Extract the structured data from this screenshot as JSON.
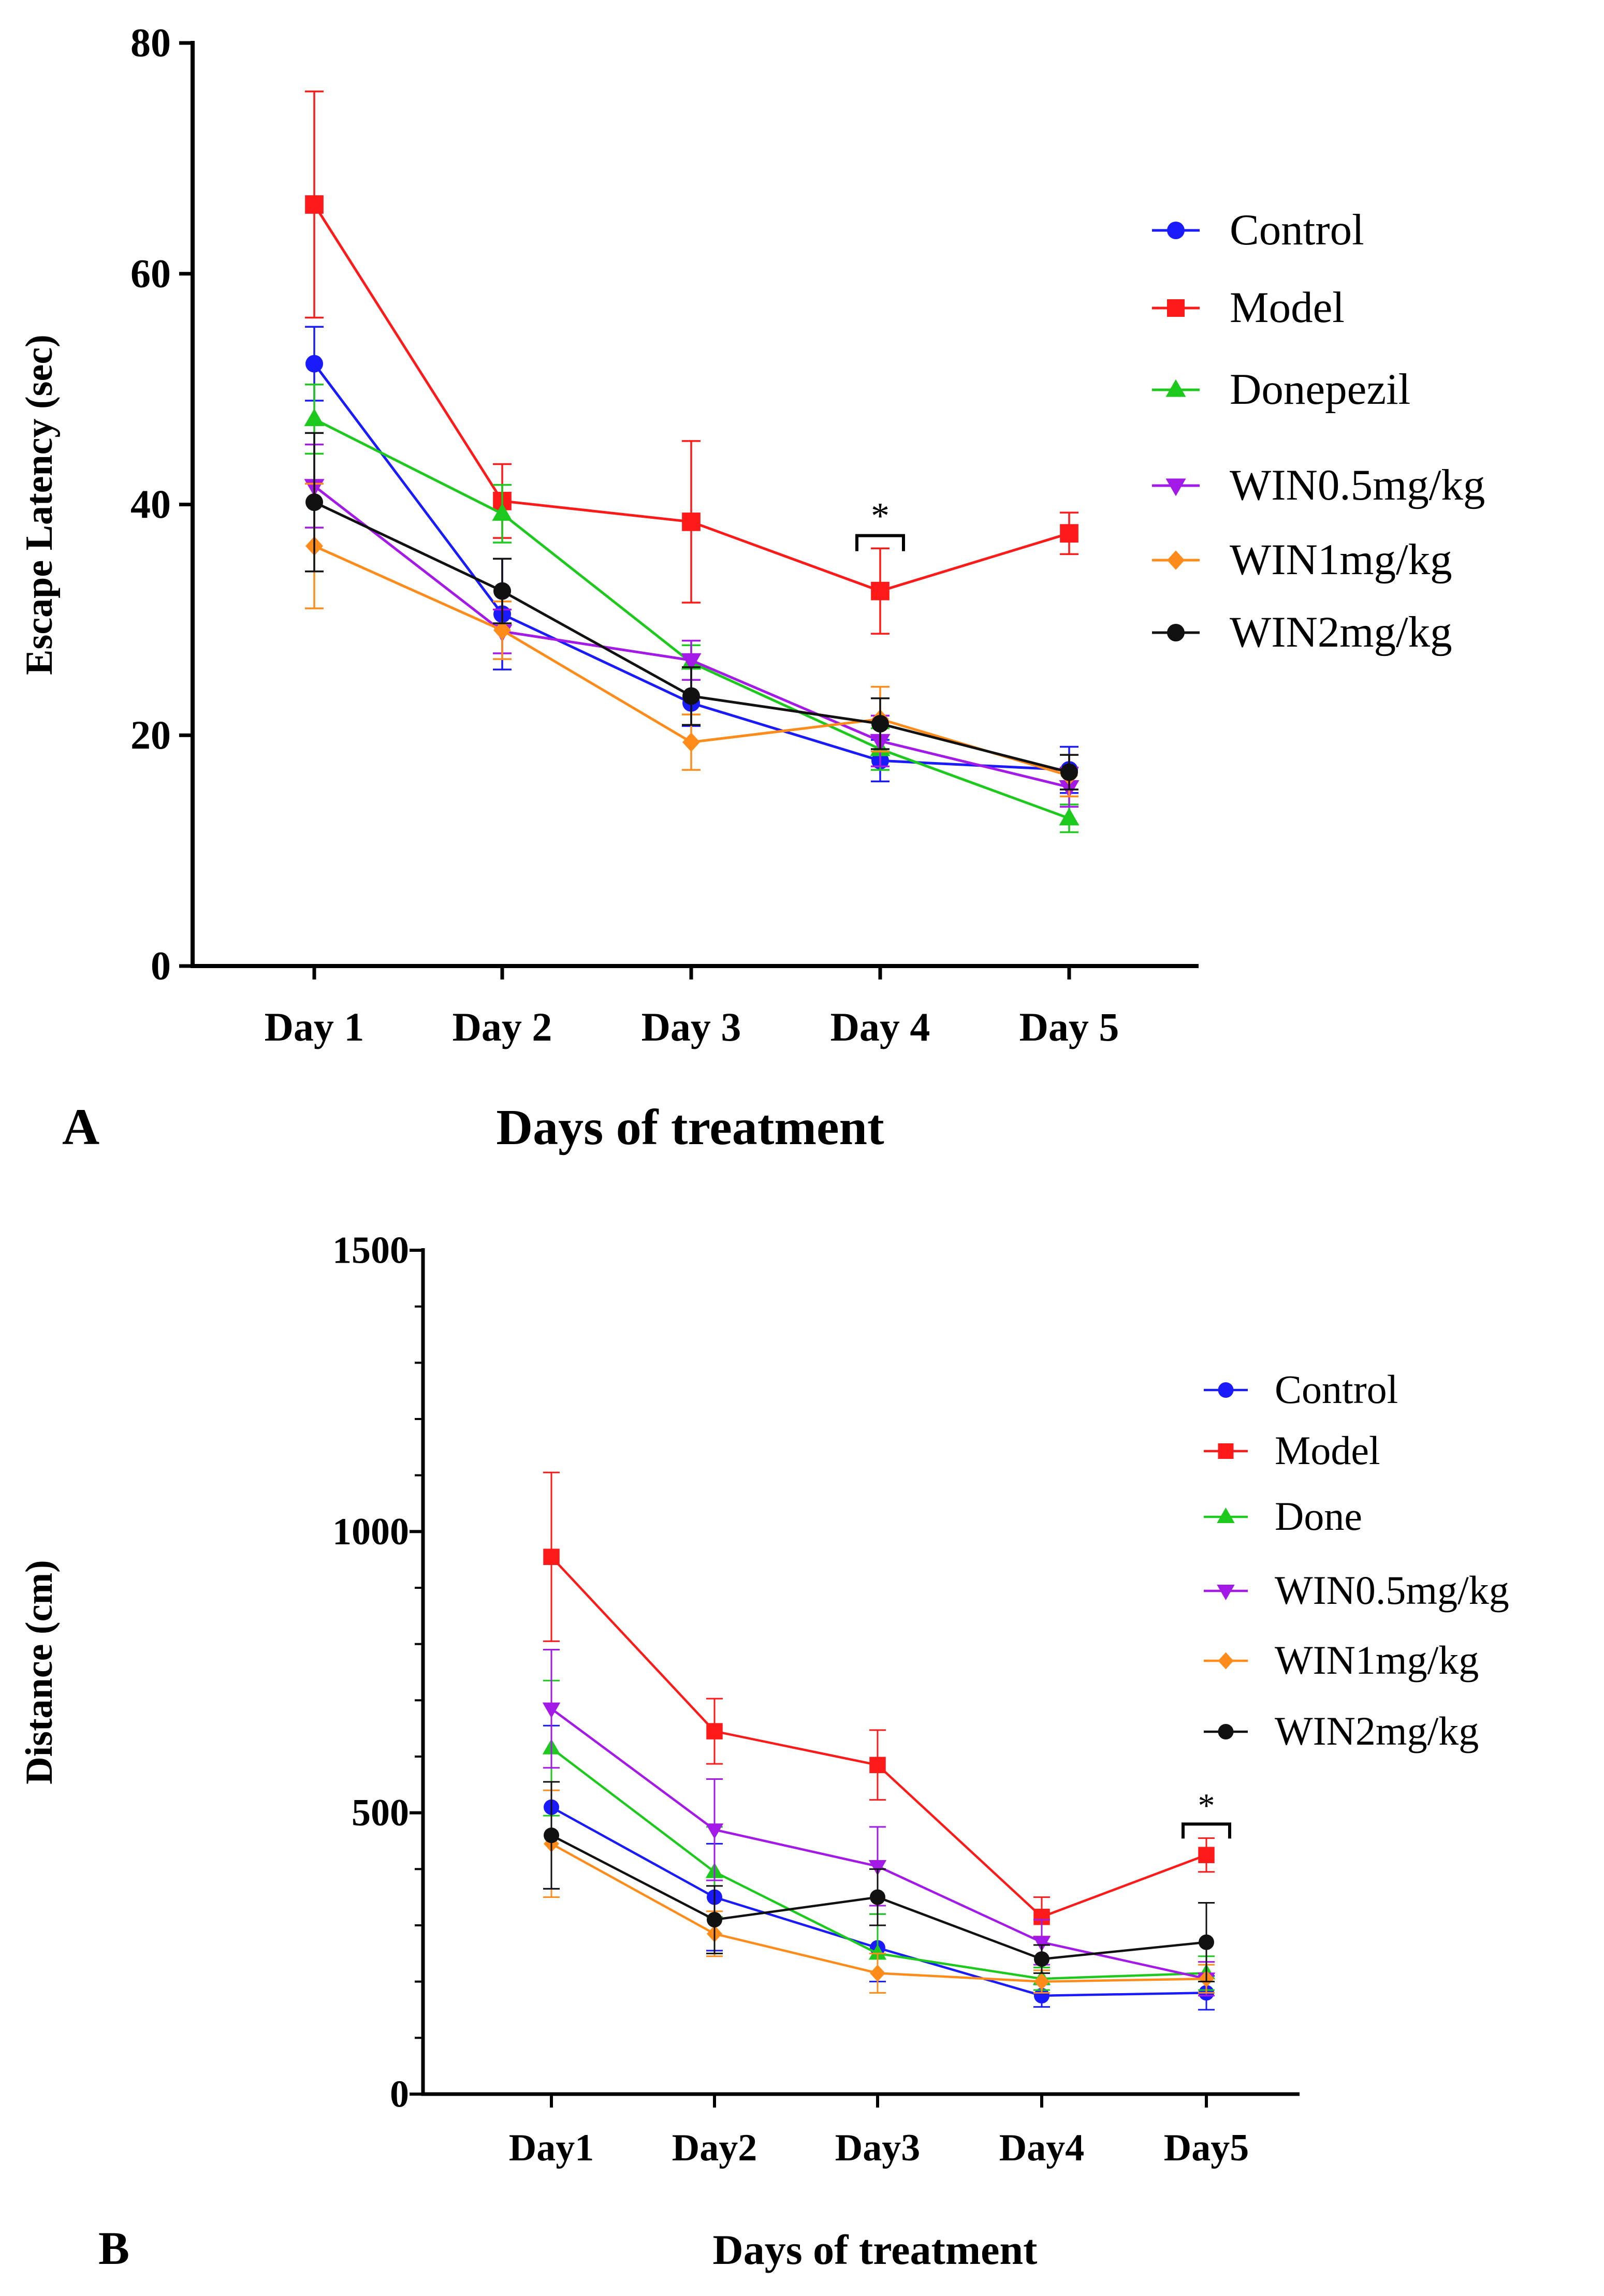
{
  "chart_data": [
    {
      "panel_label": "A",
      "type": "line",
      "xlabel": "Days of treatment",
      "ylabel": "Escape Latency (sec)",
      "categories": [
        "Day 1",
        "Day 2",
        "Day 3",
        "Day 4",
        "Day 5"
      ],
      "ylim": [
        0,
        80
      ],
      "yticks": [
        0,
        20,
        40,
        60,
        80
      ],
      "legend_position": "top-right",
      "series": [
        {
          "name": "Control",
          "color": "#1a1aff",
          "marker": "circle",
          "values": [
            52.2,
            30.5,
            22.8,
            17.8,
            17.0
          ],
          "errors": [
            3.2,
            4.8,
            2.0,
            1.8,
            2.0
          ]
        },
        {
          "name": "Model",
          "color": "#ff1a1a",
          "marker": "square",
          "values": [
            66.0,
            40.3,
            38.5,
            32.5,
            37.5
          ],
          "errors": [
            9.8,
            3.2,
            7.0,
            3.7,
            1.8
          ]
        },
        {
          "name": "Donepezil",
          "color": "#1ec91e",
          "marker": "triangle-up",
          "values": [
            47.4,
            39.2,
            26.3,
            18.8,
            12.8
          ],
          "errors": [
            3.0,
            2.5,
            1.5,
            1.8,
            1.2
          ]
        },
        {
          "name": "WIN0.5mg/kg",
          "color": "#a31ae8",
          "marker": "triangle-down",
          "values": [
            41.6,
            29.0,
            26.5,
            19.5,
            15.5
          ],
          "errors": [
            3.6,
            1.9,
            1.7,
            2.2,
            1.7
          ]
        },
        {
          "name": "WIN1mg/kg",
          "color": "#ff8c1a",
          "marker": "diamond",
          "values": [
            36.4,
            29.1,
            19.4,
            21.4,
            16.5
          ],
          "errors": [
            5.4,
            2.5,
            2.4,
            2.8,
            1.8
          ]
        },
        {
          "name": "WIN2mg/kg",
          "color": "#111111",
          "marker": "circle",
          "values": [
            40.2,
            32.5,
            23.4,
            21.0,
            16.8
          ],
          "errors": [
            6.0,
            2.8,
            2.5,
            2.2,
            1.5
          ]
        }
      ],
      "annotations": [
        {
          "text": "*",
          "category": "Day 4",
          "y": 37.3
        }
      ]
    },
    {
      "panel_label": "B",
      "type": "line",
      "xlabel": "Days of treatment",
      "ylabel": "Distance (cm)",
      "categories": [
        "Day1",
        "Day2",
        "Day3",
        "Day4",
        "Day5"
      ],
      "ylim": [
        0,
        1500
      ],
      "yticks": [
        0,
        500,
        1000,
        1500
      ],
      "legend_position": "right",
      "series": [
        {
          "name": "Control",
          "color": "#1a1aff",
          "marker": "circle",
          "values": [
            510,
            350,
            260,
            175,
            180
          ],
          "errors": [
            145,
            95,
            60,
            20,
            30
          ]
        },
        {
          "name": "Model",
          "color": "#ff1a1a",
          "marker": "square",
          "values": [
            955,
            645,
            585,
            315,
            425
          ],
          "errors": [
            150,
            58,
            62,
            35,
            30
          ]
        },
        {
          "name": "Done",
          "color": "#1ec91e",
          "marker": "triangle-up",
          "values": [
            615,
            395,
            250,
            205,
            215
          ],
          "errors": [
            120,
            80,
            70,
            20,
            30
          ]
        },
        {
          "name": "WIN0.5mg/kg",
          "color": "#a31ae8",
          "marker": "triangle-down",
          "values": [
            685,
            470,
            405,
            270,
            205
          ],
          "errors": [
            105,
            90,
            70,
            40,
            30
          ]
        },
        {
          "name": "WIN1mg/kg",
          "color": "#ff8c1a",
          "marker": "diamond",
          "values": [
            445,
            285,
            215,
            200,
            205
          ],
          "errors": [
            95,
            40,
            35,
            20,
            25
          ]
        },
        {
          "name": "WIN2mg/kg",
          "color": "#111111",
          "marker": "circle",
          "values": [
            460,
            310,
            350,
            240,
            270
          ],
          "errors": [
            95,
            60,
            50,
            25,
            70
          ]
        }
      ],
      "annotations": [
        {
          "text": "*",
          "category": "Day5",
          "y": 480
        }
      ]
    }
  ]
}
